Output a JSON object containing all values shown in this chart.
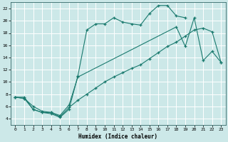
{
  "bg_color": "#cce8e8",
  "line_color": "#1a7a6e",
  "grid_color": "#ffffff",
  "xlabel": "Humidex (Indice chaleur)",
  "xlim": [
    -0.5,
    23.5
  ],
  "ylim": [
    3.0,
    23.0
  ],
  "yticks": [
    4,
    6,
    8,
    10,
    12,
    14,
    16,
    18,
    20,
    22
  ],
  "xticks": [
    0,
    1,
    2,
    3,
    4,
    5,
    6,
    7,
    8,
    9,
    10,
    11,
    12,
    13,
    14,
    15,
    16,
    17,
    18,
    19,
    20,
    21,
    22,
    23
  ],
  "curve1_x": [
    0,
    1,
    2,
    3,
    4,
    5,
    6,
    7,
    8,
    9,
    10,
    11,
    12,
    13,
    14,
    15,
    16,
    17,
    18,
    19
  ],
  "curve1_y": [
    7.5,
    7.5,
    5.5,
    5.0,
    4.8,
    4.2,
    5.5,
    11.0,
    18.5,
    19.5,
    19.5,
    20.5,
    19.8,
    19.5,
    19.3,
    21.2,
    22.5,
    22.5,
    20.8,
    20.5
  ],
  "curve2_x": [
    0,
    1,
    2,
    3,
    4,
    5,
    6,
    7,
    8,
    9,
    10,
    11,
    12,
    13,
    14,
    15,
    16,
    17,
    18,
    19,
    20,
    21,
    22,
    23
  ],
  "curve2_y": [
    7.5,
    7.3,
    6.0,
    5.2,
    5.0,
    4.3,
    5.8,
    7.0,
    8.0,
    9.0,
    10.0,
    10.8,
    11.5,
    12.2,
    12.8,
    13.8,
    14.8,
    15.8,
    16.5,
    17.5,
    18.5,
    18.8,
    18.2,
    13.2
  ],
  "curve3_x": [
    0,
    1,
    2,
    3,
    4,
    5,
    6,
    7,
    18,
    19,
    20,
    21,
    22,
    23
  ],
  "curve3_y": [
    7.5,
    7.3,
    5.5,
    5.0,
    5.0,
    4.5,
    6.2,
    10.8,
    19.0,
    15.8,
    20.5,
    13.5,
    15.0,
    13.2
  ]
}
